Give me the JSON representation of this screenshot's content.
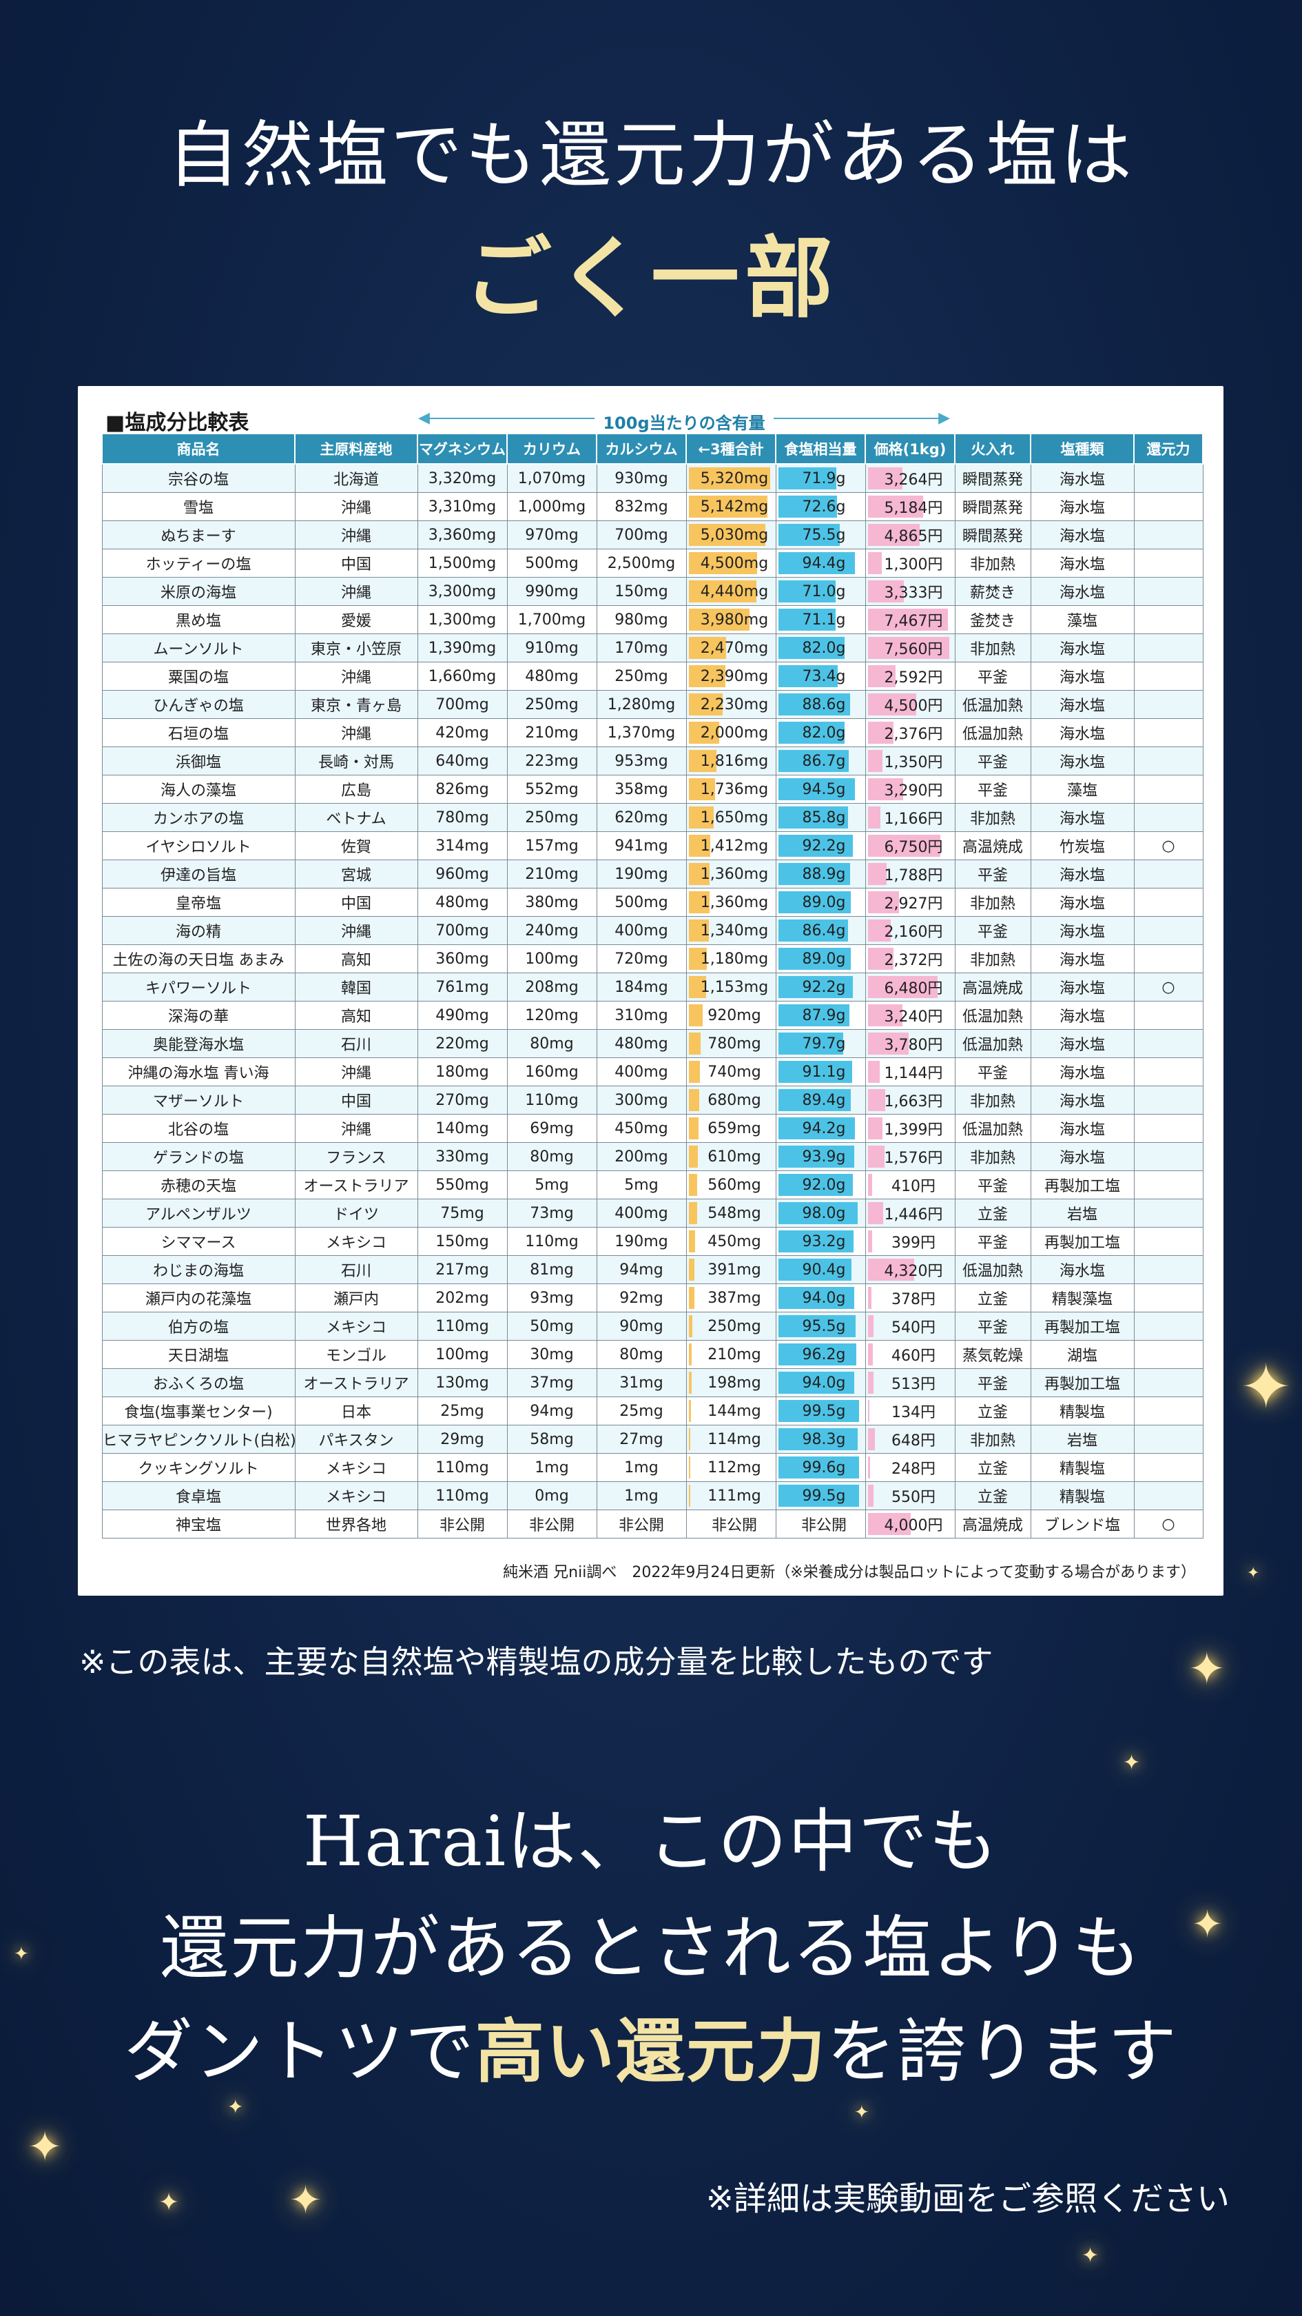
{
  "headline": {
    "line1": "自然塩でも還元力がある塩は",
    "line2": "ごく一部"
  },
  "table": {
    "title": "■塩成分比較表",
    "unit_label": "100g当たりの含有量",
    "headers": [
      "商品名",
      "主原料産地",
      "マグネシウム",
      "カリウム",
      "カルシウム",
      "←3種合計",
      "食塩相当量",
      "価格(1kg)",
      "火入れ",
      "塩種類",
      "還元力"
    ],
    "rows": [
      {
        "name": "宗谷の塩",
        "origin": "北海道",
        "mg": "3,320mg",
        "k": "1,070mg",
        "ca": "930mg",
        "total": "5,320mg",
        "total_v": 5320,
        "salt": "71.9g",
        "salt_v": 71.9,
        "price": "3,264円",
        "price_v": 3264,
        "heat": "瞬間蒸発",
        "type": "海水塩",
        "mark": ""
      },
      {
        "name": "雪塩",
        "origin": "沖縄",
        "mg": "3,310mg",
        "k": "1,000mg",
        "ca": "832mg",
        "total": "5,142mg",
        "total_v": 5142,
        "salt": "72.6g",
        "salt_v": 72.6,
        "price": "5,184円",
        "price_v": 5184,
        "heat": "瞬間蒸発",
        "type": "海水塩",
        "mark": ""
      },
      {
        "name": "ぬちまーす",
        "origin": "沖縄",
        "mg": "3,360mg",
        "k": "970mg",
        "ca": "700mg",
        "total": "5,030mg",
        "total_v": 5030,
        "salt": "75.5g",
        "salt_v": 75.5,
        "price": "4,865円",
        "price_v": 4865,
        "heat": "瞬間蒸発",
        "type": "海水塩",
        "mark": ""
      },
      {
        "name": "ホッティーの塩",
        "origin": "中国",
        "mg": "1,500mg",
        "k": "500mg",
        "ca": "2,500mg",
        "total": "4,500mg",
        "total_v": 4500,
        "salt": "94.4g",
        "salt_v": 94.4,
        "price": "1,300円",
        "price_v": 1300,
        "heat": "非加熱",
        "type": "海水塩",
        "mark": ""
      },
      {
        "name": "米原の海塩",
        "origin": "沖縄",
        "mg": "3,300mg",
        "k": "990mg",
        "ca": "150mg",
        "total": "4,440mg",
        "total_v": 4440,
        "salt": "71.0g",
        "salt_v": 71.0,
        "price": "3,333円",
        "price_v": 3333,
        "heat": "薪焚き",
        "type": "海水塩",
        "mark": ""
      },
      {
        "name": "黒め塩",
        "origin": "愛媛",
        "mg": "1,300mg",
        "k": "1,700mg",
        "ca": "980mg",
        "total": "3,980mg",
        "total_v": 3980,
        "salt": "71.1g",
        "salt_v": 71.1,
        "price": "7,467円",
        "price_v": 7467,
        "heat": "釜焚き",
        "type": "藻塩",
        "mark": ""
      },
      {
        "name": "ムーンソルト",
        "origin": "東京・小笠原",
        "mg": "1,390mg",
        "k": "910mg",
        "ca": "170mg",
        "total": "2,470mg",
        "total_v": 2470,
        "salt": "82.0g",
        "salt_v": 82.0,
        "price": "7,560円",
        "price_v": 7560,
        "heat": "非加熱",
        "type": "海水塩",
        "mark": ""
      },
      {
        "name": "粟国の塩",
        "origin": "沖縄",
        "mg": "1,660mg",
        "k": "480mg",
        "ca": "250mg",
        "total": "2,390mg",
        "total_v": 2390,
        "salt": "73.4g",
        "salt_v": 73.4,
        "price": "2,592円",
        "price_v": 2592,
        "heat": "平釜",
        "type": "海水塩",
        "mark": ""
      },
      {
        "name": "ひんぎゃの塩",
        "origin": "東京・青ヶ島",
        "mg": "700mg",
        "k": "250mg",
        "ca": "1,280mg",
        "total": "2,230mg",
        "total_v": 2230,
        "salt": "88.6g",
        "salt_v": 88.6,
        "price": "4,500円",
        "price_v": 4500,
        "heat": "低温加熱",
        "type": "海水塩",
        "mark": ""
      },
      {
        "name": "石垣の塩",
        "origin": "沖縄",
        "mg": "420mg",
        "k": "210mg",
        "ca": "1,370mg",
        "total": "2,000mg",
        "total_v": 2000,
        "salt": "82.0g",
        "salt_v": 82.0,
        "price": "2,376円",
        "price_v": 2376,
        "heat": "低温加熱",
        "type": "海水塩",
        "mark": ""
      },
      {
        "name": "浜御塩",
        "origin": "長崎・対馬",
        "mg": "640mg",
        "k": "223mg",
        "ca": "953mg",
        "total": "1,816mg",
        "total_v": 1816,
        "salt": "86.7g",
        "salt_v": 86.7,
        "price": "1,350円",
        "price_v": 1350,
        "heat": "平釜",
        "type": "海水塩",
        "mark": ""
      },
      {
        "name": "海人の藻塩",
        "origin": "広島",
        "mg": "826mg",
        "k": "552mg",
        "ca": "358mg",
        "total": "1,736mg",
        "total_v": 1736,
        "salt": "94.5g",
        "salt_v": 94.5,
        "price": "3,290円",
        "price_v": 3290,
        "heat": "平釜",
        "type": "藻塩",
        "mark": ""
      },
      {
        "name": "カンホアの塩",
        "origin": "ベトナム",
        "mg": "780mg",
        "k": "250mg",
        "ca": "620mg",
        "total": "1,650mg",
        "total_v": 1650,
        "salt": "85.8g",
        "salt_v": 85.8,
        "price": "1,166円",
        "price_v": 1166,
        "heat": "非加熱",
        "type": "海水塩",
        "mark": ""
      },
      {
        "name": "イヤシロソルト",
        "origin": "佐賀",
        "mg": "314mg",
        "k": "157mg",
        "ca": "941mg",
        "total": "1,412mg",
        "total_v": 1412,
        "salt": "92.2g",
        "salt_v": 92.2,
        "price": "6,750円",
        "price_v": 6750,
        "heat": "高温焼成",
        "type": "竹炭塩",
        "mark": "○"
      },
      {
        "name": "伊達の旨塩",
        "origin": "宮城",
        "mg": "960mg",
        "k": "210mg",
        "ca": "190mg",
        "total": "1,360mg",
        "total_v": 1360,
        "salt": "88.9g",
        "salt_v": 88.9,
        "price": "1,788円",
        "price_v": 1788,
        "heat": "平釜",
        "type": "海水塩",
        "mark": ""
      },
      {
        "name": "皇帝塩",
        "origin": "中国",
        "mg": "480mg",
        "k": "380mg",
        "ca": "500mg",
        "total": "1,360mg",
        "total_v": 1360,
        "salt": "89.0g",
        "salt_v": 89.0,
        "price": "2,927円",
        "price_v": 2927,
        "heat": "非加熱",
        "type": "海水塩",
        "mark": ""
      },
      {
        "name": "海の精",
        "origin": "沖縄",
        "mg": "700mg",
        "k": "240mg",
        "ca": "400mg",
        "total": "1,340mg",
        "total_v": 1340,
        "salt": "86.4g",
        "salt_v": 86.4,
        "price": "2,160円",
        "price_v": 2160,
        "heat": "平釜",
        "type": "海水塩",
        "mark": ""
      },
      {
        "name": "土佐の海の天日塩 あまみ",
        "origin": "高知",
        "mg": "360mg",
        "k": "100mg",
        "ca": "720mg",
        "total": "1,180mg",
        "total_v": 1180,
        "salt": "89.0g",
        "salt_v": 89.0,
        "price": "2,372円",
        "price_v": 2372,
        "heat": "非加熱",
        "type": "海水塩",
        "mark": ""
      },
      {
        "name": "キパワーソルト",
        "origin": "韓国",
        "mg": "761mg",
        "k": "208mg",
        "ca": "184mg",
        "total": "1,153mg",
        "total_v": 1153,
        "salt": "92.2g",
        "salt_v": 92.2,
        "price": "6,480円",
        "price_v": 6480,
        "heat": "高温焼成",
        "type": "海水塩",
        "mark": "○"
      },
      {
        "name": "深海の華",
        "origin": "高知",
        "mg": "490mg",
        "k": "120mg",
        "ca": "310mg",
        "total": "920mg",
        "total_v": 920,
        "salt": "87.9g",
        "salt_v": 87.9,
        "price": "3,240円",
        "price_v": 3240,
        "heat": "低温加熱",
        "type": "海水塩",
        "mark": ""
      },
      {
        "name": "奥能登海水塩",
        "origin": "石川",
        "mg": "220mg",
        "k": "80mg",
        "ca": "480mg",
        "total": "780mg",
        "total_v": 780,
        "salt": "79.7g",
        "salt_v": 79.7,
        "price": "3,780円",
        "price_v": 3780,
        "heat": "低温加熱",
        "type": "海水塩",
        "mark": ""
      },
      {
        "name": "沖縄の海水塩 青い海",
        "origin": "沖縄",
        "mg": "180mg",
        "k": "160mg",
        "ca": "400mg",
        "total": "740mg",
        "total_v": 740,
        "salt": "91.1g",
        "salt_v": 91.1,
        "price": "1,144円",
        "price_v": 1144,
        "heat": "平釜",
        "type": "海水塩",
        "mark": ""
      },
      {
        "name": "マザーソルト",
        "origin": "中国",
        "mg": "270mg",
        "k": "110mg",
        "ca": "300mg",
        "total": "680mg",
        "total_v": 680,
        "salt": "89.4g",
        "salt_v": 89.4,
        "price": "1,663円",
        "price_v": 1663,
        "heat": "非加熱",
        "type": "海水塩",
        "mark": ""
      },
      {
        "name": "北谷の塩",
        "origin": "沖縄",
        "mg": "140mg",
        "k": "69mg",
        "ca": "450mg",
        "total": "659mg",
        "total_v": 659,
        "salt": "94.2g",
        "salt_v": 94.2,
        "price": "1,399円",
        "price_v": 1399,
        "heat": "低温加熱",
        "type": "海水塩",
        "mark": ""
      },
      {
        "name": "ゲランドの塩",
        "origin": "フランス",
        "mg": "330mg",
        "k": "80mg",
        "ca": "200mg",
        "total": "610mg",
        "total_v": 610,
        "salt": "93.9g",
        "salt_v": 93.9,
        "price": "1,576円",
        "price_v": 1576,
        "heat": "非加熱",
        "type": "海水塩",
        "mark": ""
      },
      {
        "name": "赤穂の天塩",
        "origin": "オーストラリア",
        "mg": "550mg",
        "k": "5mg",
        "ca": "5mg",
        "total": "560mg",
        "total_v": 560,
        "salt": "92.0g",
        "salt_v": 92.0,
        "price": "410円",
        "price_v": 410,
        "heat": "平釜",
        "type": "再製加工塩",
        "mark": ""
      },
      {
        "name": "アルペンザルツ",
        "origin": "ドイツ",
        "mg": "75mg",
        "k": "73mg",
        "ca": "400mg",
        "total": "548mg",
        "total_v": 548,
        "salt": "98.0g",
        "salt_v": 98.0,
        "price": "1,446円",
        "price_v": 1446,
        "heat": "立釜",
        "type": "岩塩",
        "mark": ""
      },
      {
        "name": "シママース",
        "origin": "メキシコ",
        "mg": "150mg",
        "k": "110mg",
        "ca": "190mg",
        "total": "450mg",
        "total_v": 450,
        "salt": "93.2g",
        "salt_v": 93.2,
        "price": "399円",
        "price_v": 399,
        "heat": "平釜",
        "type": "再製加工塩",
        "mark": ""
      },
      {
        "name": "わじまの海塩",
        "origin": "石川",
        "mg": "217mg",
        "k": "81mg",
        "ca": "94mg",
        "total": "391mg",
        "total_v": 391,
        "salt": "90.4g",
        "salt_v": 90.4,
        "price": "4,320円",
        "price_v": 4320,
        "heat": "低温加熱",
        "type": "海水塩",
        "mark": ""
      },
      {
        "name": "瀬戸内の花藻塩",
        "origin": "瀬戸内",
        "mg": "202mg",
        "k": "93mg",
        "ca": "92mg",
        "total": "387mg",
        "total_v": 387,
        "salt": "94.0g",
        "salt_v": 94.0,
        "price": "378円",
        "price_v": 378,
        "heat": "立釜",
        "type": "精製藻塩",
        "mark": ""
      },
      {
        "name": "伯方の塩",
        "origin": "メキシコ",
        "mg": "110mg",
        "k": "50mg",
        "ca": "90mg",
        "total": "250mg",
        "total_v": 250,
        "salt": "95.5g",
        "salt_v": 95.5,
        "price": "540円",
        "price_v": 540,
        "heat": "平釜",
        "type": "再製加工塩",
        "mark": ""
      },
      {
        "name": "天日湖塩",
        "origin": "モンゴル",
        "mg": "100mg",
        "k": "30mg",
        "ca": "80mg",
        "total": "210mg",
        "total_v": 210,
        "salt": "96.2g",
        "salt_v": 96.2,
        "price": "460円",
        "price_v": 460,
        "heat": "蒸気乾燥",
        "type": "湖塩",
        "mark": ""
      },
      {
        "name": "おふくろの塩",
        "origin": "オーストラリア",
        "mg": "130mg",
        "k": "37mg",
        "ca": "31mg",
        "total": "198mg",
        "total_v": 198,
        "salt": "94.0g",
        "salt_v": 94.0,
        "price": "513円",
        "price_v": 513,
        "heat": "平釜",
        "type": "再製加工塩",
        "mark": ""
      },
      {
        "name": "食塩(塩事業センター)",
        "origin": "日本",
        "mg": "25mg",
        "k": "94mg",
        "ca": "25mg",
        "total": "144mg",
        "total_v": 144,
        "salt": "99.5g",
        "salt_v": 99.5,
        "price": "134円",
        "price_v": 134,
        "heat": "立釜",
        "type": "精製塩",
        "mark": ""
      },
      {
        "name": "ヒマラヤピンクソルト(白松)",
        "origin": "パキスタン",
        "mg": "29mg",
        "k": "58mg",
        "ca": "27mg",
        "total": "114mg",
        "total_v": 114,
        "salt": "98.3g",
        "salt_v": 98.3,
        "price": "648円",
        "price_v": 648,
        "heat": "非加熱",
        "type": "岩塩",
        "mark": ""
      },
      {
        "name": "クッキングソルト",
        "origin": "メキシコ",
        "mg": "110mg",
        "k": "1mg",
        "ca": "1mg",
        "total": "112mg",
        "total_v": 112,
        "salt": "99.6g",
        "salt_v": 99.6,
        "price": "248円",
        "price_v": 248,
        "heat": "立釜",
        "type": "精製塩",
        "mark": ""
      },
      {
        "name": "食卓塩",
        "origin": "メキシコ",
        "mg": "110mg",
        "k": "0mg",
        "ca": "1mg",
        "total": "111mg",
        "total_v": 111,
        "salt": "99.5g",
        "salt_v": 99.5,
        "price": "550円",
        "price_v": 550,
        "heat": "立釜",
        "type": "精製塩",
        "mark": ""
      },
      {
        "name": "神宝塩",
        "origin": "世界各地",
        "mg": "非公開",
        "k": "非公開",
        "ca": "非公開",
        "total": "非公開",
        "total_v": 0,
        "salt": "非公開",
        "salt_v": 0,
        "price": "4,000円",
        "price_v": 4000,
        "heat": "高温焼成",
        "type": "ブレンド塩",
        "mark": "○"
      }
    ],
    "note": "純米酒 兄nii調べ　2022年9月24日更新（※栄養成分は製品ロットによって変動する場合があります）"
  },
  "footnote1": "※この表は、主要な自然塩や精製塩の成分量を比較したものです",
  "claim": {
    "line1": "Haraiは、この中でも",
    "line2": "還元力があるとされる塩よりも",
    "line3_a": "ダントツで",
    "line3_hl": "高い還元力",
    "line3_b": "を誇ります"
  },
  "footnote2": "※詳細は実験動画をご参照ください",
  "colors": {
    "background": "#0f2346",
    "accent": "#f3e4a6",
    "header": "#2d8fb3",
    "total_bar": "#f7c45e",
    "salt_bar": "#4cc3e6",
    "price_bar": "#f6b7d2",
    "mark": "#d62020"
  }
}
